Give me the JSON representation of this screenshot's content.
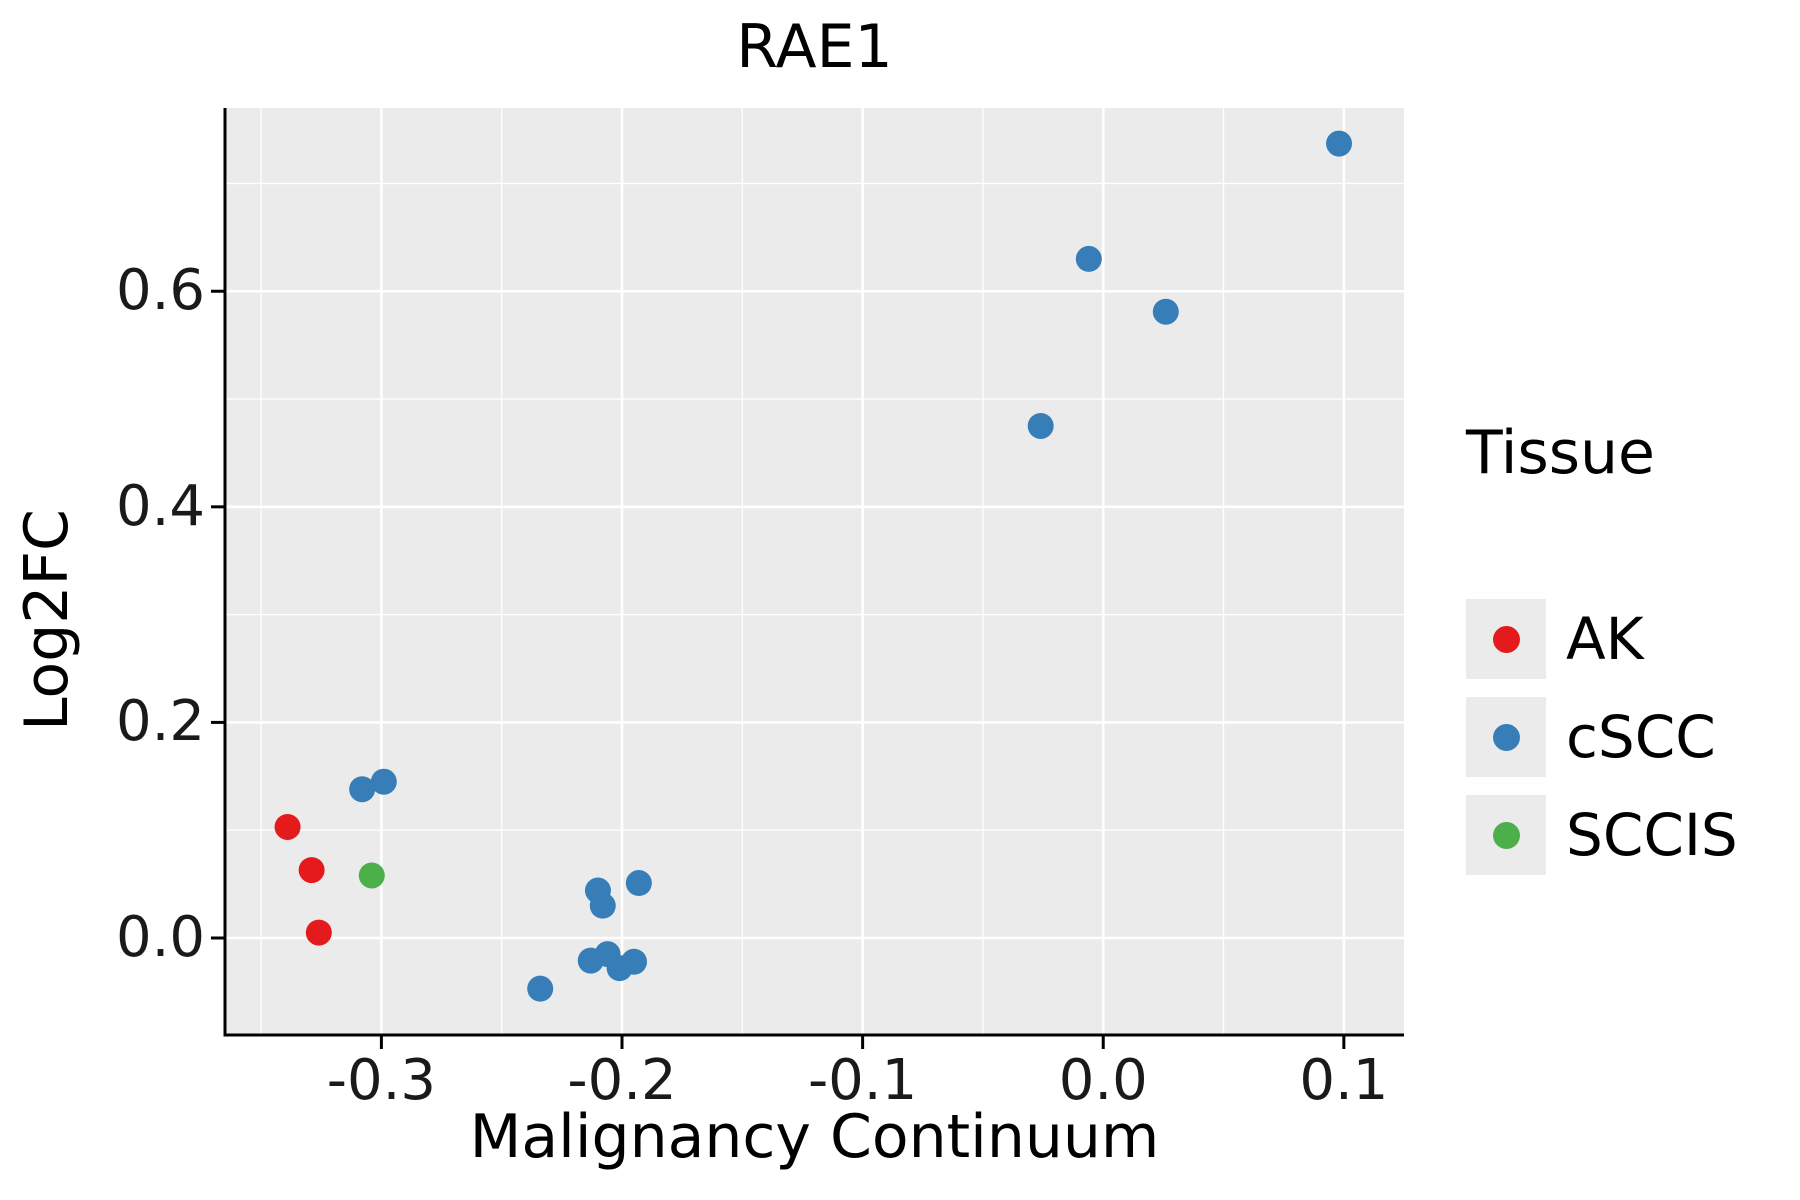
{
  "chart_data": {
    "type": "scatter",
    "title": "RAE1",
    "xlabel": "Malignancy Continuum",
    "ylabel": "Log2FC",
    "xlim": [
      -0.365,
      0.125
    ],
    "ylim": [
      -0.09,
      0.77
    ],
    "x_ticks": [
      -0.3,
      -0.2,
      -0.1,
      0.0,
      0.1
    ],
    "x_tick_labels": [
      "-0.3",
      "-0.2",
      "-0.1",
      "0.0",
      "0.1"
    ],
    "y_ticks": [
      0.0,
      0.2,
      0.4,
      0.6
    ],
    "y_tick_labels": [
      "0.0",
      "0.2",
      "0.4",
      "0.6"
    ],
    "x_minor_ticks": [
      -0.35,
      -0.25,
      -0.15,
      -0.05,
      0.05
    ],
    "y_minor_ticks": [
      0.1,
      0.3,
      0.5,
      0.7
    ],
    "grid": true,
    "panel_bg": "#EBEBEB",
    "grid_color": "#FFFFFF",
    "axis_color": "#000000",
    "point_radius": 13,
    "legend": {
      "title": "Tissue",
      "position": "right",
      "key_bg": "#EBEBEB",
      "items": [
        {
          "label": "AK",
          "color": "#E41A1C"
        },
        {
          "label": "cSCC",
          "color": "#377EB8"
        },
        {
          "label": "SCCIS",
          "color": "#4DAF4A"
        }
      ]
    },
    "series": [
      {
        "name": "AK",
        "color": "#E41A1C",
        "points": [
          [
            -0.339,
            0.103
          ],
          [
            -0.329,
            0.063
          ],
          [
            -0.326,
            0.005
          ]
        ]
      },
      {
        "name": "cSCC",
        "color": "#377EB8",
        "points": [
          [
            0.098,
            0.737
          ],
          [
            -0.006,
            0.63
          ],
          [
            0.026,
            0.581
          ],
          [
            -0.026,
            0.475
          ],
          [
            -0.308,
            0.138
          ],
          [
            -0.299,
            0.145
          ],
          [
            -0.193,
            0.051
          ],
          [
            -0.21,
            0.044
          ],
          [
            -0.208,
            0.03
          ],
          [
            -0.213,
            -0.021
          ],
          [
            -0.206,
            -0.015
          ],
          [
            -0.201,
            -0.028
          ],
          [
            -0.195,
            -0.022
          ],
          [
            -0.234,
            -0.047
          ]
        ]
      },
      {
        "name": "SCCIS",
        "color": "#4DAF4A",
        "points": [
          [
            -0.304,
            0.058
          ]
        ]
      }
    ]
  }
}
